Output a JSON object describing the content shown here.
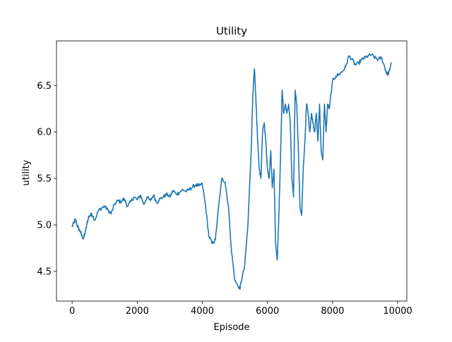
{
  "chart_data": {
    "type": "line",
    "title": "Utility",
    "xlabel": "Episode",
    "ylabel": "utility",
    "xlim": [
      -480,
      10280
    ],
    "ylim": [
      4.18,
      6.98
    ],
    "xticks": [
      0,
      2000,
      4000,
      6000,
      8000,
      10000
    ],
    "xtick_labels": [
      "0",
      "2000",
      "4000",
      "6000",
      "8000",
      "10000"
    ],
    "yticks": [
      4.5,
      5.0,
      5.5,
      6.0,
      6.5
    ],
    "ytick_labels": [
      "4.5",
      "5.0",
      "5.5",
      "6.0",
      "6.5"
    ],
    "grid": false,
    "series": [
      {
        "color": "#1f77b4",
        "x": [
          0,
          50,
          100,
          150,
          200,
          250,
          300,
          350,
          400,
          450,
          500,
          550,
          600,
          700,
          800,
          900,
          1000,
          1100,
          1200,
          1300,
          1400,
          1500,
          1600,
          1700,
          1800,
          1900,
          2000,
          2100,
          2200,
          2300,
          2400,
          2500,
          2600,
          2700,
          2800,
          2900,
          3000,
          3100,
          3200,
          3300,
          3400,
          3500,
          3600,
          3700,
          3800,
          3900,
          4000,
          4100,
          4200,
          4300,
          4400,
          4500,
          4600,
          4700,
          4800,
          4900,
          5000,
          5100,
          5150,
          5200,
          5300,
          5400,
          5500,
          5550,
          5600,
          5650,
          5700,
          5750,
          5800,
          5850,
          5900,
          5950,
          6000,
          6050,
          6100,
          6150,
          6200,
          6250,
          6300,
          6350,
          6400,
          6450,
          6500,
          6550,
          6600,
          6650,
          6700,
          6750,
          6800,
          6850,
          6900,
          6950,
          7000,
          7050,
          7100,
          7150,
          7200,
          7250,
          7300,
          7350,
          7400,
          7450,
          7500,
          7550,
          7600,
          7650,
          7700,
          7750,
          7800,
          7850,
          7900,
          8000,
          8100,
          8200,
          8300,
          8400,
          8500,
          8600,
          8700,
          8800,
          8900,
          9000,
          9100,
          9200,
          9300,
          9400,
          9500,
          9600,
          9650,
          9700,
          9750,
          9800
        ],
        "y": [
          4.98,
          5.02,
          5.06,
          5.0,
          4.96,
          4.93,
          4.88,
          4.85,
          4.92,
          5.0,
          5.08,
          5.1,
          5.12,
          5.05,
          5.15,
          5.18,
          5.2,
          5.16,
          5.12,
          5.22,
          5.26,
          5.25,
          5.28,
          5.2,
          5.25,
          5.3,
          5.27,
          5.32,
          5.22,
          5.3,
          5.26,
          5.32,
          5.24,
          5.28,
          5.3,
          5.33,
          5.3,
          5.37,
          5.33,
          5.35,
          5.38,
          5.36,
          5.38,
          5.41,
          5.43,
          5.42,
          5.44,
          5.2,
          4.88,
          4.8,
          4.84,
          5.2,
          5.5,
          5.46,
          5.2,
          4.7,
          4.4,
          4.34,
          4.31,
          4.4,
          4.56,
          5.0,
          5.8,
          6.4,
          6.68,
          6.3,
          5.9,
          5.6,
          5.5,
          6.0,
          6.1,
          5.9,
          5.6,
          5.5,
          5.8,
          5.4,
          5.6,
          4.8,
          4.62,
          5.1,
          5.7,
          6.45,
          6.2,
          6.3,
          6.2,
          6.3,
          6.1,
          5.5,
          5.3,
          6.45,
          6.3,
          5.8,
          5.2,
          5.1,
          5.6,
          5.9,
          6.3,
          6.2,
          6.0,
          6.2,
          6.1,
          6.0,
          6.2,
          5.9,
          6.3,
          5.8,
          5.7,
          6.3,
          6.0,
          6.3,
          6.25,
          6.55,
          6.6,
          6.62,
          6.65,
          6.7,
          6.82,
          6.78,
          6.72,
          6.74,
          6.78,
          6.8,
          6.82,
          6.83,
          6.8,
          6.78,
          6.8,
          6.7,
          6.64,
          6.62,
          6.66,
          6.75
        ],
        "jitter_amplitude": [
          0.02,
          0.02,
          0.02,
          0.02,
          0.02,
          0.02,
          0.02,
          0.02,
          0.02,
          0.02,
          0.02,
          0.02,
          0.02,
          0.02,
          0.02,
          0.02,
          0.02,
          0.02,
          0.02,
          0.02,
          0.02,
          0.02,
          0.02,
          0.02,
          0.02,
          0.02,
          0.02,
          0.02,
          0.02,
          0.02,
          0.02,
          0.02,
          0.02,
          0.02,
          0.02,
          0.02,
          0.02,
          0.02,
          0.02,
          0.02,
          0.02,
          0.02,
          0.02,
          0.02,
          0.02,
          0.02,
          0.02,
          0.02,
          0.02,
          0.02,
          0.02,
          0.02,
          0.02,
          0.02,
          0.02,
          0.02,
          0.02,
          0.02,
          0.02,
          0.02,
          0.02,
          0.02,
          0.02,
          0.02,
          0.02,
          0.02,
          0.02,
          0.02,
          0.02,
          0.02,
          0.02,
          0.02,
          0.02,
          0.02,
          0.02,
          0.02,
          0.02,
          0.02,
          0.02,
          0.02,
          0.02,
          0.02,
          0.02,
          0.02,
          0.02,
          0.02,
          0.02,
          0.02,
          0.02,
          0.02,
          0.02,
          0.02,
          0.02,
          0.02,
          0.02,
          0.02,
          0.02,
          0.02,
          0.02,
          0.02,
          0.02,
          0.02,
          0.02,
          0.02,
          0.02,
          0.02,
          0.02,
          0.02,
          0.02,
          0.02,
          0.02,
          0.02,
          0.02,
          0.02,
          0.02,
          0.02,
          0.02,
          0.02,
          0.02,
          0.02,
          0.02,
          0.02,
          0.02,
          0.02,
          0.02,
          0.02,
          0.02,
          0.02,
          0.02,
          0.02,
          0.02,
          0.02
        ]
      }
    ]
  }
}
